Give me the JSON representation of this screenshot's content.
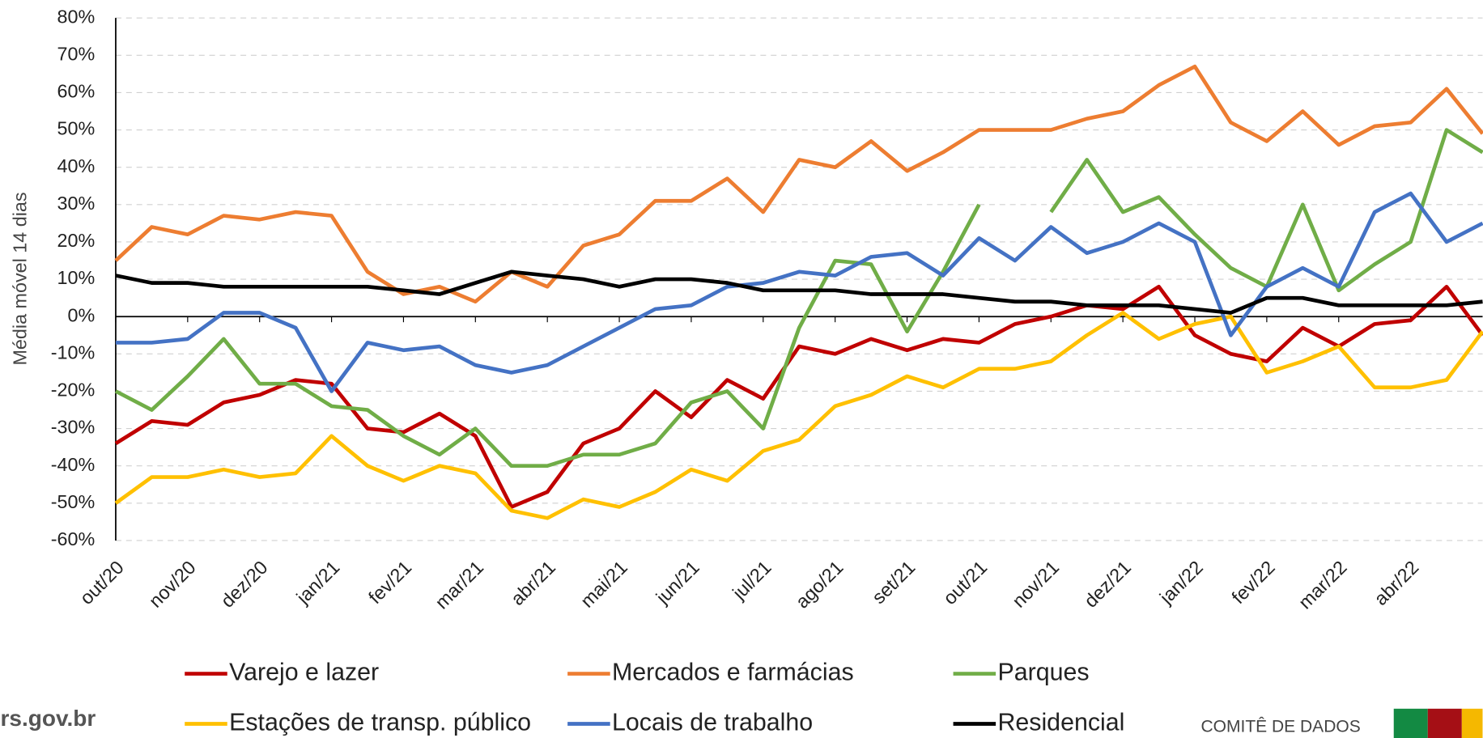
{
  "chart_data": {
    "type": "line",
    "y_label": "Média móvel 14 dias",
    "categories": [
      "out/20",
      null,
      "nov/20",
      null,
      "dez/20",
      null,
      "jan/21",
      null,
      "fev/21",
      null,
      "mar/21",
      null,
      "abr/21",
      null,
      "mai/21",
      null,
      "jun/21",
      null,
      "jul/21",
      null,
      "ago/21",
      null,
      "set/21",
      null,
      "out/21",
      null,
      "nov/21",
      null,
      "dez/21",
      null,
      "jan/22",
      null,
      "fev/22",
      null,
      "mar/22",
      null,
      "abr/22",
      null,
      null
    ],
    "ylim": [
      -60,
      80
    ],
    "yticks": [
      {
        "value": -60,
        "label": "-60%"
      },
      {
        "value": -50,
        "label": "-50%"
      },
      {
        "value": -40,
        "label": "-40%"
      },
      {
        "value": -30,
        "label": "-30%"
      },
      {
        "value": -20,
        "label": "-20%"
      },
      {
        "value": -10,
        "label": "-10%"
      },
      {
        "value": 0,
        "label": "0%"
      },
      {
        "value": 10,
        "label": "10%"
      },
      {
        "value": 20,
        "label": "20%"
      },
      {
        "value": 30,
        "label": "30%"
      },
      {
        "value": 40,
        "label": "40%"
      },
      {
        "value": 50,
        "label": "50%"
      },
      {
        "value": 60,
        "label": "60%"
      },
      {
        "value": 70,
        "label": "70%"
      },
      {
        "value": 80,
        "label": "80%"
      }
    ],
    "grid": true,
    "legend": "bottom",
    "series": [
      {
        "name": "Varejo e lazer",
        "color": "#c00000",
        "values": [
          -34,
          -28,
          -29,
          -23,
          -21,
          -17,
          -18,
          -30,
          -31,
          -26,
          -32,
          -51,
          -47,
          -34,
          -30,
          -20,
          -27,
          -17,
          -22,
          -8,
          -10,
          -6,
          -9,
          -6,
          -7,
          -2,
          0,
          3,
          2,
          8,
          -5,
          -10,
          -12,
          -3,
          -8,
          -2,
          -1,
          8,
          -5
        ]
      },
      {
        "name": "Mercados e farmácias",
        "color": "#ed7d31",
        "values": [
          15,
          24,
          22,
          27,
          26,
          28,
          27,
          12,
          6,
          8,
          4,
          12,
          8,
          19,
          22,
          31,
          31,
          37,
          28,
          42,
          40,
          47,
          39,
          44,
          50,
          50,
          50,
          53,
          55,
          62,
          67,
          52,
          47,
          55,
          46,
          51,
          52,
          61,
          49
        ]
      },
      {
        "name": "Parques",
        "color": "#70ad47",
        "values": [
          -20,
          -25,
          -16,
          -6,
          -18,
          -18,
          -24,
          -25,
          -32,
          -37,
          -30,
          -40,
          -40,
          -37,
          -37,
          -34,
          -23,
          -20,
          -30,
          -3,
          15,
          14,
          -4,
          12,
          30,
          null,
          28,
          42,
          28,
          32,
          22,
          13,
          8,
          30,
          7,
          14,
          20,
          50,
          44
        ]
      },
      {
        "name": "Estações de transp. público",
        "color": "#ffc000",
        "values": [
          -50,
          -43,
          -43,
          -41,
          -43,
          -42,
          -32,
          -40,
          -44,
          -40,
          -42,
          -52,
          -54,
          -49,
          -51,
          -47,
          -41,
          -44,
          -36,
          -33,
          -24,
          -21,
          -16,
          -19,
          -14,
          -14,
          -12,
          -5,
          1,
          -6,
          -2,
          0,
          -15,
          -12,
          -8,
          -19,
          -19,
          -17,
          -4
        ]
      },
      {
        "name": "Locais de trabalho",
        "color": "#4472c4",
        "values": [
          -7,
          -7,
          -6,
          1,
          1,
          -3,
          -20,
          -7,
          -9,
          -8,
          -13,
          -15,
          -13,
          -8,
          -3,
          2,
          3,
          8,
          9,
          12,
          11,
          16,
          17,
          11,
          21,
          15,
          24,
          17,
          20,
          25,
          20,
          -5,
          8,
          13,
          8,
          28,
          33,
          20,
          25
        ]
      },
      {
        "name": "Residencial",
        "color": "#000000",
        "values": [
          11,
          9,
          9,
          8,
          8,
          8,
          8,
          8,
          7,
          6,
          9,
          12,
          11,
          10,
          8,
          10,
          10,
          9,
          7,
          7,
          7,
          6,
          6,
          6,
          5,
          4,
          4,
          3,
          3,
          3,
          2,
          1,
          5,
          5,
          3,
          3,
          3,
          3,
          4
        ]
      }
    ]
  },
  "footer": {
    "site": "rs.gov.br",
    "committee": "COMITÊ DE DADOS"
  }
}
